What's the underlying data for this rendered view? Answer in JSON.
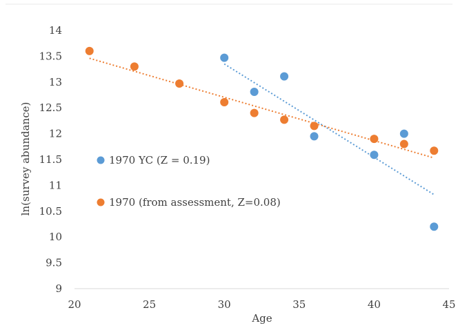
{
  "chart_data": {
    "type": "scatter",
    "title": "",
    "xlabel": "Age",
    "ylabel": "ln(survey abundance)",
    "xlim": [
      20,
      45
    ],
    "ylim": [
      9,
      14
    ],
    "x_ticks": [
      "20",
      "25",
      "30",
      "35",
      "40",
      "45"
    ],
    "y_ticks": [
      "9",
      "9.5",
      "10",
      "10.5",
      "11",
      "11.5",
      "12",
      "12.5",
      "13",
      "13.5",
      "14"
    ],
    "grid": false,
    "legend_position": "inside-left",
    "series": [
      {
        "name": "1970 YC (Z = 0.19)",
        "color": "#5b9bd5",
        "x": [
          30,
          32,
          34,
          36,
          40,
          42,
          44
        ],
        "y": [
          13.47,
          12.81,
          13.11,
          11.95,
          11.59,
          12.0,
          10.2
        ],
        "trendline": {
          "x": [
            30,
            44
          ],
          "y": [
            13.35,
            10.82
          ]
        }
      },
      {
        "name": "1970 (from assessment, Z=0.08)",
        "color": "#ed7d31",
        "x": [
          21,
          24,
          27,
          30,
          32,
          34,
          36,
          40,
          42,
          44
        ],
        "y": [
          13.6,
          13.3,
          12.97,
          12.61,
          12.4,
          12.27,
          12.15,
          11.9,
          11.8,
          11.67
        ],
        "trendline": {
          "x": [
            21,
            44
          ],
          "y": [
            13.46,
            11.53
          ]
        }
      }
    ]
  }
}
